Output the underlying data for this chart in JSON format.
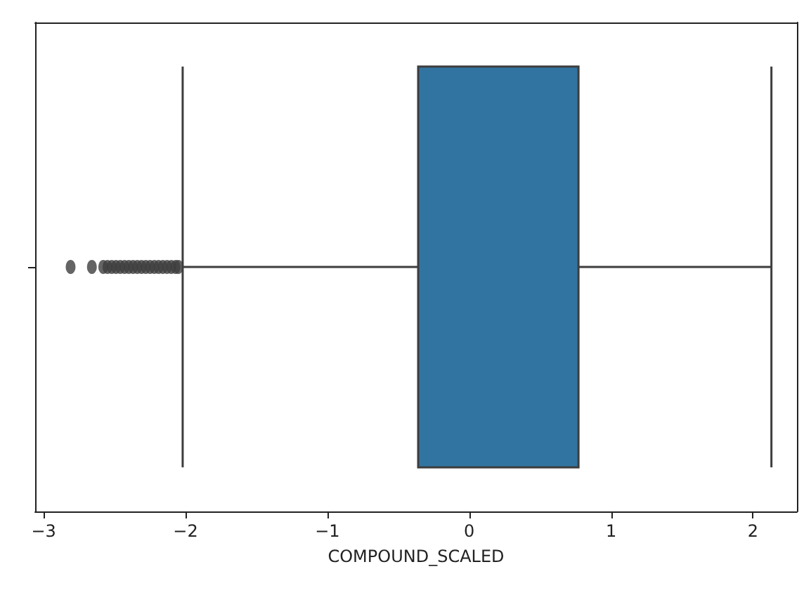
{
  "chart_data": {
    "type": "box",
    "orientation": "horizontal",
    "xlabel": "COMPOUND_SCALED",
    "categories": [
      null
    ],
    "xlim": [
      -3.06,
      2.31
    ],
    "xticks": [
      -3,
      -2,
      -1,
      0,
      1,
      2
    ],
    "grid": false,
    "marker": "circle",
    "series": [
      {
        "color": "#3274a1",
        "boxes": [
          {
            "low": -2.02,
            "q1": -0.36,
            "median": 0.77,
            "q3": 0.77,
            "high": 2.13,
            "outliers": [
              -2.81,
              -2.66,
              -2.58,
              -2.55,
              -2.52,
              -2.49,
              -2.46,
              -2.43,
              -2.4,
              -2.37,
              -2.34,
              -2.31,
              -2.28,
              -2.25,
              -2.22,
              -2.19,
              -2.16,
              -2.13,
              -2.1,
              -2.07,
              -2.05
            ]
          }
        ]
      }
    ]
  }
}
